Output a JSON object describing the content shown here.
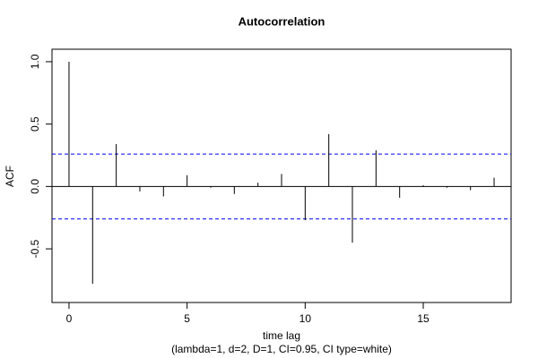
{
  "chart_data": {
    "type": "bar",
    "title": "Autocorrelation",
    "x_label": "time lag",
    "subtitle": "(lambda=1, d=2, D=1, CI=0.95, CI type=white)",
    "y_label": "ACF",
    "x": [
      0,
      1,
      2,
      3,
      4,
      5,
      6,
      7,
      8,
      9,
      10,
      11,
      12,
      13,
      14,
      15,
      16,
      17,
      18
    ],
    "values": [
      1.0,
      -0.78,
      0.34,
      -0.04,
      -0.08,
      0.09,
      -0.01,
      -0.06,
      0.03,
      0.1,
      -0.27,
      0.42,
      -0.45,
      0.29,
      -0.09,
      0.01,
      -0.01,
      -0.03,
      0.07
    ],
    "color": "#000000",
    "ci_lines": [
      0.26,
      -0.26
    ],
    "ci_color": "#0000ff",
    "xlim": [
      -0.72,
      18.72
    ],
    "ylim": [
      -0.93,
      1.1
    ],
    "xticks": [
      0,
      5,
      10,
      15
    ],
    "yticks": [
      {
        "value": 1,
        "label": "1.0"
      },
      0.5,
      {
        "value": 0,
        "label": "0.0"
      },
      -0.5
    ],
    "grid": false
  }
}
